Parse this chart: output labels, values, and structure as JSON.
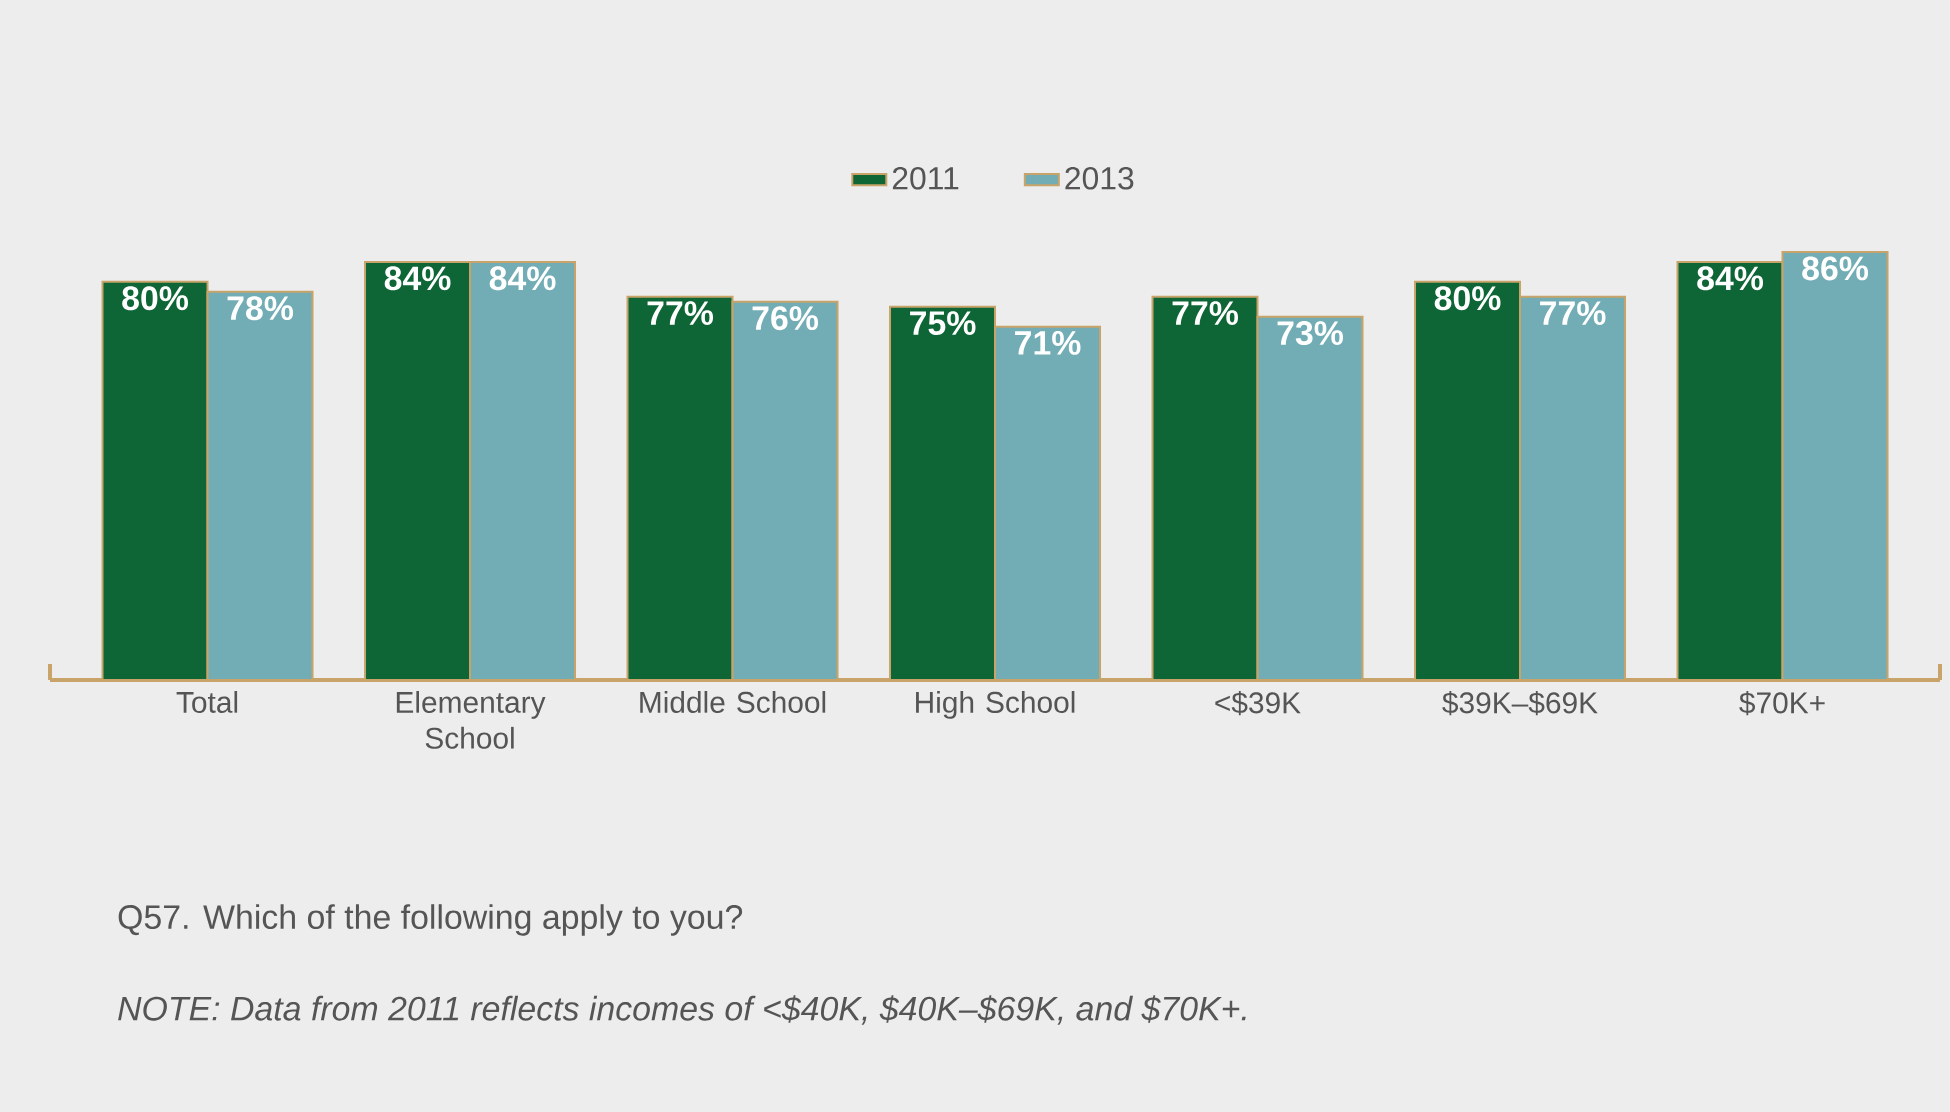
{
  "chart_data": {
    "type": "bar",
    "categories": [
      "Total",
      "Elementary School",
      "Middle School",
      "High School",
      "<$39K",
      "$39K–$69K",
      "$70K+"
    ],
    "series": [
      {
        "name": "2011",
        "color": "#0e6636",
        "values": [
          80,
          84,
          77,
          75,
          77,
          80,
          84
        ],
        "value_labels": [
          "80%",
          "84%",
          "77%",
          "75%",
          "77%",
          "80%",
          "84%"
        ]
      },
      {
        "name": "2013",
        "color": "#72adb5",
        "values": [
          78,
          84,
          76,
          71,
          73,
          77,
          86
        ],
        "value_labels": [
          "78%",
          "84%",
          "76%",
          "71%",
          "73%",
          "77%",
          "86%"
        ]
      }
    ],
    "legend": "top",
    "annotations": [
      "Q57. Which of the following apply to you?",
      "NOTE: Data from 2011 reflects incomes of <$40K, $40K–$69K, and $70K+."
    ]
  }
}
